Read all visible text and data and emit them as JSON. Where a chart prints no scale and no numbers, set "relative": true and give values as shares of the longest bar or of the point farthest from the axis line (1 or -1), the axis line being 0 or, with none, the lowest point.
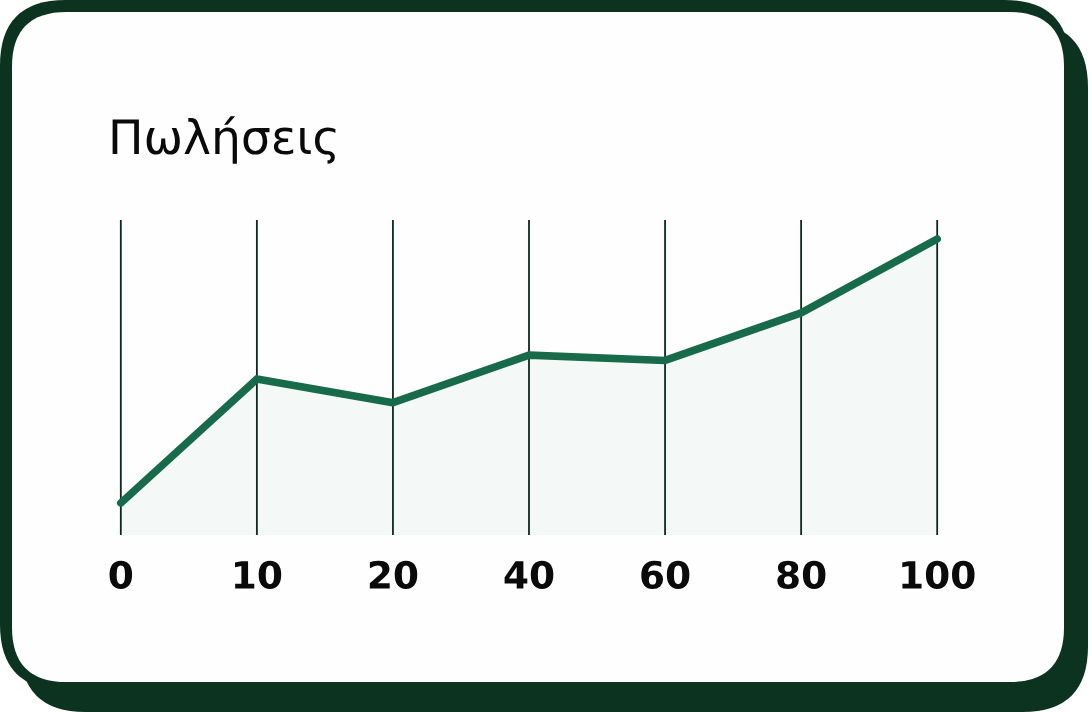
{
  "chart_data": {
    "type": "area",
    "title": "Πωλήσεις",
    "relative": true,
    "categories": [
      "0",
      "10",
      "20",
      "40",
      "60",
      "80",
      "100"
    ],
    "series": [
      {
        "color": "#176b4b",
        "values": [
          0,
          0.47,
          0.38,
          0.56,
          0.54,
          0.72,
          1
        ]
      }
    ],
    "grid": "x",
    "marker": "none",
    "line_style": "solid"
  }
}
